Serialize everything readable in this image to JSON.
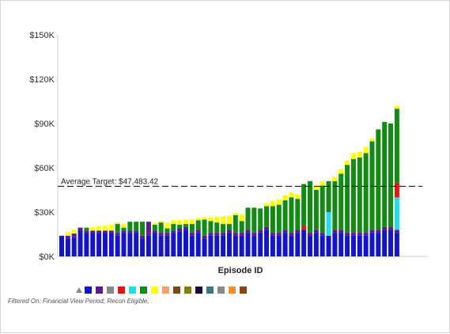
{
  "chart_data": {
    "type": "bar",
    "stacked": true,
    "title": "",
    "xlabel": "Episode ID",
    "ylabel": "",
    "ylim": [
      0,
      150000
    ],
    "y_ticks": [
      0,
      30000,
      60000,
      90000,
      120000,
      150000
    ],
    "y_tick_labels": [
      "$0K",
      "$30K",
      "$60K",
      "$90K",
      "$120K",
      "$150K"
    ],
    "grid": false,
    "reference_line": {
      "label": "Average Target: $47,483.42",
      "value": 47483.42,
      "style": "dashed"
    },
    "stack_colors": [
      "#1515c8",
      "#5a1a96",
      "#888888",
      "#e81515",
      "#22dde8",
      "#138a13",
      "#ffff00"
    ],
    "bars": [
      [
        {
          "v": 14000,
          "c": 0
        }
      ],
      [
        {
          "v": 12000,
          "c": 0
        },
        {
          "v": 2000,
          "c": 1
        },
        {
          "v": 2500,
          "c": 6
        }
      ],
      [
        {
          "v": 13000,
          "c": 0
        },
        {
          "v": 2500,
          "c": 1
        },
        {
          "v": 2500,
          "c": 6
        }
      ],
      [
        {
          "v": 18000,
          "c": 0
        },
        {
          "v": 1500,
          "c": 1
        }
      ],
      [
        {
          "v": 16000,
          "c": 0
        },
        {
          "v": 1500,
          "c": 1
        },
        {
          "v": 2000,
          "c": 5
        }
      ],
      [
        {
          "v": 16000,
          "c": 0
        },
        {
          "v": 1500,
          "c": 1
        },
        {
          "v": 2500,
          "c": 6
        }
      ],
      [
        {
          "v": 16000,
          "c": 0
        },
        {
          "v": 1500,
          "c": 1
        },
        {
          "v": 3000,
          "c": 6
        }
      ],
      [
        {
          "v": 16000,
          "c": 0
        },
        {
          "v": 1500,
          "c": 1
        },
        {
          "v": 3500,
          "c": 6
        }
      ],
      [
        {
          "v": 16000,
          "c": 0
        },
        {
          "v": 1500,
          "c": 1
        },
        {
          "v": 4000,
          "c": 6
        }
      ],
      [
        {
          "v": 14000,
          "c": 0
        },
        {
          "v": 2000,
          "c": 1
        },
        {
          "v": 6000,
          "c": 5
        },
        {
          "v": 1000,
          "c": 6
        }
      ],
      [
        {
          "v": 16000,
          "c": 0
        },
        {
          "v": 1500,
          "c": 1
        },
        {
          "v": 2000,
          "c": 5
        },
        {
          "v": 2500,
          "c": 6
        }
      ],
      [
        {
          "v": 16000,
          "c": 0
        },
        {
          "v": 1500,
          "c": 1
        },
        {
          "v": 6000,
          "c": 5
        }
      ],
      [
        {
          "v": 16000,
          "c": 0
        },
        {
          "v": 1500,
          "c": 1
        },
        {
          "v": 6000,
          "c": 5
        }
      ],
      [
        {
          "v": 12000,
          "c": 0
        },
        {
          "v": 2000,
          "c": 1
        },
        {
          "v": 9500,
          "c": 5
        }
      ],
      [
        {
          "v": 14000,
          "c": 0
        },
        {
          "v": 2000,
          "c": 1
        },
        {
          "v": 7500,
          "c": 1
        }
      ],
      [
        {
          "v": 16000,
          "c": 0
        },
        {
          "v": 1500,
          "c": 1
        },
        {
          "v": 4000,
          "c": 5
        },
        {
          "v": 1000,
          "c": 6
        }
      ],
      [
        {
          "v": 14000,
          "c": 0
        },
        {
          "v": 2000,
          "c": 1
        },
        {
          "v": 7000,
          "c": 5
        },
        {
          "v": 1000,
          "c": 6
        }
      ],
      [
        {
          "v": 14000,
          "c": 0
        },
        {
          "v": 2000,
          "c": 1
        },
        {
          "v": 3000,
          "c": 5
        },
        {
          "v": 4000,
          "c": 6
        }
      ],
      [
        {
          "v": 16000,
          "c": 0
        },
        {
          "v": 1500,
          "c": 1
        },
        {
          "v": 4500,
          "c": 5
        },
        {
          "v": 2500,
          "c": 6
        }
      ],
      [
        {
          "v": 17000,
          "c": 0
        },
        {
          "v": 2000,
          "c": 1
        },
        {
          "v": 2500,
          "c": 5
        },
        {
          "v": 3000,
          "c": 6
        }
      ],
      [
        {
          "v": 18000,
          "c": 0
        },
        {
          "v": 2000,
          "c": 1
        },
        {
          "v": 2000,
          "c": 5
        },
        {
          "v": 3000,
          "c": 6
        }
      ],
      [
        {
          "v": 14000,
          "c": 0
        },
        {
          "v": 2000,
          "c": 1
        },
        {
          "v": 6000,
          "c": 5
        },
        {
          "v": 3000,
          "c": 6
        }
      ],
      [
        {
          "v": 16000,
          "c": 0
        },
        {
          "v": 2000,
          "c": 1
        },
        {
          "v": 6500,
          "c": 5
        },
        {
          "v": 1500,
          "c": 6
        }
      ],
      [
        {
          "v": 12000,
          "c": 0
        },
        {
          "v": 2000,
          "c": 1
        },
        {
          "v": 11000,
          "c": 5
        },
        {
          "v": 1500,
          "c": 6
        }
      ],
      [
        {
          "v": 14000,
          "c": 0
        },
        {
          "v": 2000,
          "c": 1
        },
        {
          "v": 8000,
          "c": 5
        },
        {
          "v": 2500,
          "c": 6
        }
      ],
      [
        {
          "v": 14000,
          "c": 0
        },
        {
          "v": 2000,
          "c": 1
        },
        {
          "v": 7000,
          "c": 5
        },
        {
          "v": 4000,
          "c": 6
        }
      ],
      [
        {
          "v": 14000,
          "c": 0
        },
        {
          "v": 2000,
          "c": 1
        },
        {
          "v": 6000,
          "c": 5
        },
        {
          "v": 5000,
          "c": 6
        }
      ],
      [
        {
          "v": 16000,
          "c": 0
        },
        {
          "v": 2000,
          "c": 1
        },
        {
          "v": 4000,
          "c": 5
        },
        {
          "v": 5500,
          "c": 6
        }
      ],
      [
        {
          "v": 14000,
          "c": 0
        },
        {
          "v": 2000,
          "c": 1
        },
        {
          "v": 12000,
          "c": 5
        },
        {
          "v": 1500,
          "c": 6
        }
      ],
      [
        {
          "v": 14000,
          "c": 0
        },
        {
          "v": 2000,
          "c": 1
        },
        {
          "v": 8000,
          "c": 5
        },
        {
          "v": 4500,
          "c": 6
        }
      ],
      [
        {
          "v": 16000,
          "c": 0
        },
        {
          "v": 2000,
          "c": 1
        },
        {
          "v": 4000,
          "c": 5
        },
        {
          "v": 11000,
          "c": 5
        }
      ],
      [
        {
          "v": 14000,
          "c": 0
        },
        {
          "v": 2000,
          "c": 1
        },
        {
          "v": 17000,
          "c": 5
        }
      ],
      [
        {
          "v": 16000,
          "c": 0
        },
        {
          "v": 2000,
          "c": 1
        },
        {
          "v": 14500,
          "c": 5
        }
      ],
      [
        {
          "v": 18000,
          "c": 0
        },
        {
          "v": 2000,
          "c": 1
        },
        {
          "v": 14000,
          "c": 5
        },
        {
          "v": 2000,
          "c": 6
        }
      ],
      [
        {
          "v": 14000,
          "c": 0
        },
        {
          "v": 2000,
          "c": 1
        },
        {
          "v": 18000,
          "c": 5
        },
        {
          "v": 3500,
          "c": 6
        }
      ],
      [
        {
          "v": 14000,
          "c": 0
        },
        {
          "v": 2000,
          "c": 1
        },
        {
          "v": 19000,
          "c": 5
        },
        {
          "v": 3500,
          "c": 6
        }
      ],
      [
        {
          "v": 16000,
          "c": 0
        },
        {
          "v": 2000,
          "c": 1
        },
        {
          "v": 20000,
          "c": 5
        },
        {
          "v": 3500,
          "c": 6
        }
      ],
      [
        {
          "v": 14000,
          "c": 0
        },
        {
          "v": 2000,
          "c": 1
        },
        {
          "v": 24000,
          "c": 5
        },
        {
          "v": 3500,
          "c": 6
        }
      ],
      [
        {
          "v": 16000,
          "c": 0
        },
        {
          "v": 2000,
          "c": 1
        },
        {
          "v": 21000,
          "c": 5
        },
        {
          "v": 3000,
          "c": 6
        }
      ],
      [
        {
          "v": 18000,
          "c": 0
        },
        {
          "v": 3000,
          "c": 3
        },
        {
          "v": 28000,
          "c": 5
        }
      ],
      [
        {
          "v": 14000,
          "c": 0
        },
        {
          "v": 2000,
          "c": 1
        },
        {
          "v": 35000,
          "c": 5
        }
      ],
      [
        {
          "v": 16000,
          "c": 0
        },
        {
          "v": 2000,
          "c": 1
        },
        {
          "v": 27000,
          "c": 5
        },
        {
          "v": 3000,
          "c": 6
        }
      ],
      [
        {
          "v": 14000,
          "c": 0
        },
        {
          "v": 2000,
          "c": 1
        },
        {
          "v": 32000,
          "c": 5
        },
        {
          "v": 3000,
          "c": 6
        }
      ],
      [
        {
          "v": 14000,
          "c": 0
        },
        {
          "v": 16000,
          "c": 4
        },
        {
          "v": 21000,
          "c": 5
        }
      ],
      [
        {
          "v": 16000,
          "c": 0
        },
        {
          "v": 2000,
          "c": 1
        },
        {
          "v": 33000,
          "c": 5
        },
        {
          "v": 3000,
          "c": 6
        }
      ],
      [
        {
          "v": 16000,
          "c": 0
        },
        {
          "v": 2000,
          "c": 1
        },
        {
          "v": 38000,
          "c": 5
        },
        {
          "v": 3000,
          "c": 6
        }
      ],
      [
        {
          "v": 14000,
          "c": 0
        },
        {
          "v": 2000,
          "c": 1
        },
        {
          "v": 46000,
          "c": 5
        },
        {
          "v": 3000,
          "c": 6
        }
      ],
      [
        {
          "v": 14000,
          "c": 0
        },
        {
          "v": 2000,
          "c": 1
        },
        {
          "v": 50000,
          "c": 5
        },
        {
          "v": 4000,
          "c": 6
        }
      ],
      [
        {
          "v": 14000,
          "c": 0
        },
        {
          "v": 2000,
          "c": 1
        },
        {
          "v": 51000,
          "c": 5
        },
        {
          "v": 4000,
          "c": 6
        }
      ],
      [
        {
          "v": 14000,
          "c": 0
        },
        {
          "v": 2000,
          "c": 1
        },
        {
          "v": 54000,
          "c": 5
        },
        {
          "v": 4000,
          "c": 6
        }
      ],
      [
        {
          "v": 16000,
          "c": 0
        },
        {
          "v": 2000,
          "c": 1
        },
        {
          "v": 60000,
          "c": 5
        },
        {
          "v": 2000,
          "c": 6
        }
      ],
      [
        {
          "v": 16000,
          "c": 0
        },
        {
          "v": 2000,
          "c": 1
        },
        {
          "v": 68000,
          "c": 5
        }
      ],
      [
        {
          "v": 18000,
          "c": 0
        },
        {
          "v": 2000,
          "c": 1
        },
        {
          "v": 71000,
          "c": 5
        }
      ],
      [
        {
          "v": 18000,
          "c": 0
        },
        {
          "v": 2000,
          "c": 1
        },
        {
          "v": 70000,
          "c": 5
        }
      ],
      [
        {
          "v": 16000,
          "c": 0
        },
        {
          "v": 2000,
          "c": 1
        },
        {
          "v": 22000,
          "c": 4
        },
        {
          "v": 10000,
          "c": 3
        },
        {
          "v": 50000,
          "c": 5
        },
        {
          "v": 2000,
          "c": 6
        }
      ]
    ]
  },
  "legend": {
    "marker_color": "#8a8a8a",
    "colors": [
      "#1515c8",
      "#5a1a96",
      "#888888",
      "#e81515",
      "#22dde8",
      "#138a13",
      "#ffff00",
      "#f4a070",
      "#7a4a10",
      "#808000",
      "#1e0a3a",
      "#3a7a7a",
      "#8a8a8a",
      "#ff8c30",
      "#8b4513"
    ]
  },
  "footer": {
    "text": "Filtered On: Financial View Period; Recon Eligible;"
  }
}
